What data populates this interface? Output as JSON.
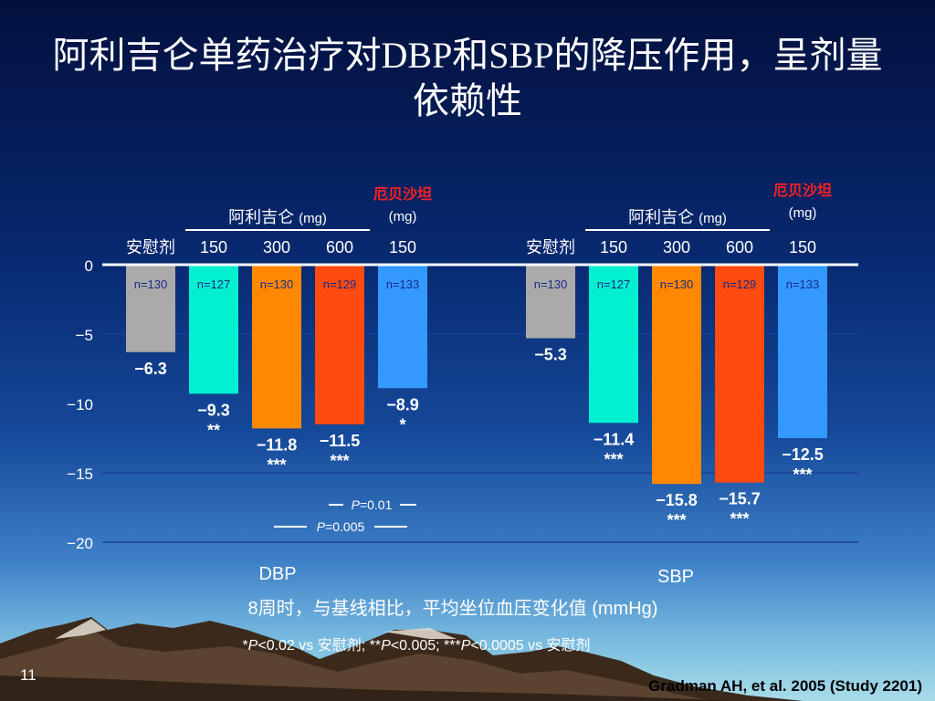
{
  "slide": {
    "title": "阿利吉仑单药治疗对DBP和SBP的降压作用，呈剂量依赖性",
    "slide_number": "11",
    "citation": "Gradman AH, et al. 2005 (Study 2201)",
    "x_caption": "8周时，与基线相比，平均坐位血压变化值 (mmHg)",
    "footnote": {
      "p1": "P",
      "t1": "<0.02 vs 安慰剂; **",
      "p2": "P",
      "t2": "<0.005; ***",
      "p3": "P",
      "t3": "<0.0005 vs 安慰剂",
      "lead": "*"
    },
    "colors": {
      "background_top": "#02103e",
      "placebo": "#aaaaaa",
      "aliskiren_150": "#00f0d0",
      "aliskiren_300": "#ff8800",
      "aliskiren_600": "#ff4a10",
      "irbesartan_150": "#3399ff",
      "n_label_text": "#1a2a8a",
      "irbesartan_header": "#ff2020",
      "gridline": "#1a3f9c"
    }
  },
  "chart_data": {
    "type": "bar",
    "y_ticks": [
      "0",
      "−5",
      "−10",
      "−15",
      "−20"
    ],
    "y_tick_values": [
      0,
      -5,
      -10,
      -15,
      -20
    ],
    "ylim": [
      -20,
      0
    ],
    "grid": true,
    "headers": {
      "aliskiren": "阿利吉仑",
      "aliskiren_unit": "(mg)",
      "irbesartan": "厄贝沙坦",
      "irbesartan_unit": "(mg)"
    },
    "groups": [
      {
        "label": "DBP",
        "p_annotations": [
          {
            "text": "=0.01",
            "p": "P"
          },
          {
            "text": "=0.005",
            "p": "P"
          }
        ],
        "bars": [
          {
            "category": "安慰剂",
            "value": -6.3,
            "label": "−6.3",
            "n": "n=130",
            "sig": ""
          },
          {
            "category": "150",
            "value": -9.3,
            "label": "−9.3",
            "n": "n=127",
            "sig": "**"
          },
          {
            "category": "300",
            "value": -11.8,
            "label": "−11.8",
            "n": "n=130",
            "sig": "***"
          },
          {
            "category": "600",
            "value": -11.5,
            "label": "−11.5",
            "n": "n=129",
            "sig": "***"
          },
          {
            "category": "150",
            "value": -8.9,
            "label": "−8.9",
            "n": "n=133",
            "sig": "*"
          }
        ]
      },
      {
        "label": "SBP",
        "p_annotations": [],
        "bars": [
          {
            "category": "安慰剂",
            "value": -5.3,
            "label": "−5.3",
            "n": "n=130",
            "sig": ""
          },
          {
            "category": "150",
            "value": -11.4,
            "label": "−11.4",
            "n": "n=127",
            "sig": "***"
          },
          {
            "category": "300",
            "value": -15.8,
            "label": "−15.8",
            "n": "n=130",
            "sig": "***"
          },
          {
            "category": "600",
            "value": -15.7,
            "label": "−15.7",
            "n": "n=129",
            "sig": "***"
          },
          {
            "category": "150",
            "value": -12.5,
            "label": "−12.5",
            "n": "n=133",
            "sig": "***"
          }
        ]
      }
    ]
  }
}
